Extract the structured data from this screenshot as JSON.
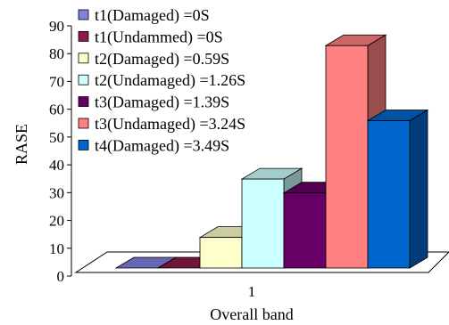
{
  "chart_data": {
    "type": "bar",
    "xlabel": "Overall band",
    "ylabel": "RASE",
    "categories": [
      "1"
    ],
    "ylim": [
      0,
      90
    ],
    "yticks": [
      0,
      10,
      20,
      30,
      40,
      50,
      60,
      70,
      80,
      90
    ],
    "legend_position": "top-left",
    "grid": false,
    "three_d": true,
    "series": [
      {
        "name": "t1(Damaged) =0S",
        "values": [
          0
        ],
        "color": "#8080e0"
      },
      {
        "name": "t1(Undammed) =0S",
        "values": [
          0
        ],
        "color": "#8b1a4a"
      },
      {
        "name": "t2(Damaged) =0.59S",
        "values": [
          11
        ],
        "color": "#ffffcc"
      },
      {
        "name": "t2(Undamaged) =1.26S",
        "values": [
          32
        ],
        "color": "#ccffff"
      },
      {
        "name": "t3(Damaged) =1.39S",
        "values": [
          27
        ],
        "color": "#660066"
      },
      {
        "name": "t3(Undamaged) =3.24S",
        "values": [
          80
        ],
        "color": "#ff8080"
      },
      {
        "name": "t4(Damaged) =3.49S",
        "values": [
          53
        ],
        "color": "#0066cc"
      }
    ]
  }
}
